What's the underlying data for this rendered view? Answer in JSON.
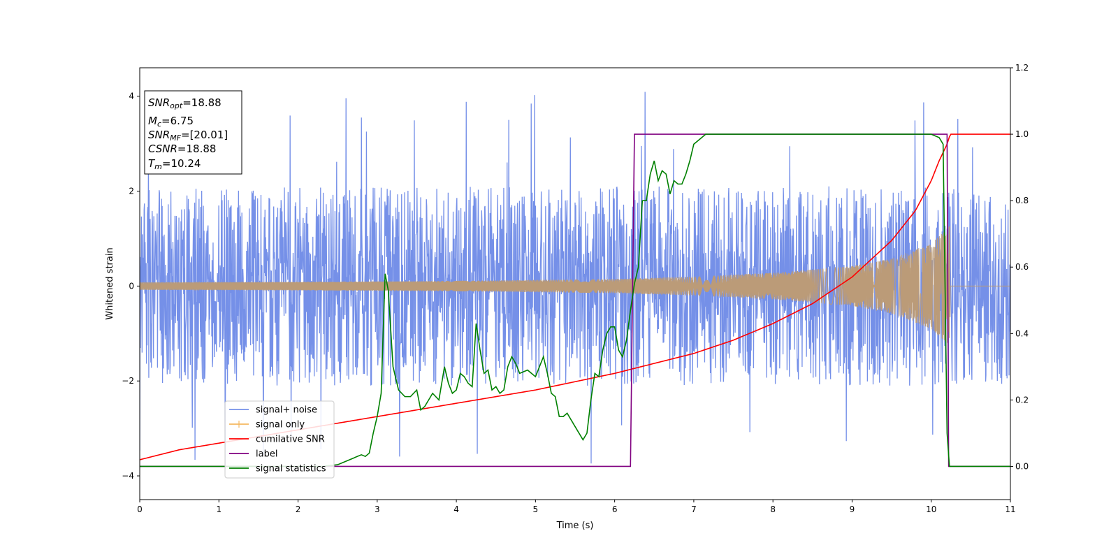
{
  "chart_data": {
    "type": "line",
    "title": "",
    "xlabel": "Time (s)",
    "ylabel": "Whitened strain",
    "xlim": [
      0,
      11
    ],
    "ylim": [
      -4.5,
      4.6
    ],
    "y2lim": [
      -0.1,
      1.2
    ],
    "x_ticks": [
      "0",
      "1",
      "2",
      "3",
      "4",
      "5",
      "6",
      "7",
      "8",
      "9",
      "10",
      "11"
    ],
    "y_ticks": [
      "4",
      "2",
      "0",
      "−2",
      "−4"
    ],
    "y_tick_values": [
      4,
      2,
      0,
      -2,
      -4
    ],
    "y2_ticks": [
      "1.2",
      "1.0",
      "0.8",
      "0.6",
      "0.4",
      "0.2",
      "0.0"
    ],
    "y2_tick_values": [
      1.2,
      1.0,
      0.8,
      0.6,
      0.4,
      0.2,
      0.0
    ],
    "grid": false,
    "legend_position": "lower-left",
    "colors": {
      "signal_noise": "#7590e8",
      "signal_only": "#f5b860",
      "signal_overlap": "#bb9b78",
      "cumulative_snr": "#ff0000",
      "label": "#800080",
      "signal_statistics": "#008000"
    },
    "series": [
      {
        "name": "signal+ noise",
        "axis": "left",
        "description_type": "noise",
        "envelope_y": [
          -2.0,
          2.3
        ],
        "max_spike": 4.15,
        "min_spike": -4.1
      },
      {
        "name": "signal only",
        "axis": "left",
        "description_type": "chirp",
        "amplitude_x": [
          0,
          2,
          4,
          6,
          7,
          8,
          9,
          9.5,
          10,
          10.2,
          10.24
        ],
        "amplitude_y": [
          0.08,
          0.09,
          0.11,
          0.15,
          0.2,
          0.28,
          0.42,
          0.58,
          0.9,
          1.2,
          1.3
        ],
        "end_x": 10.24
      },
      {
        "name": "cumilative SNR",
        "axis": "right",
        "x": [
          0,
          0.5,
          1,
          2,
          3,
          4,
          5,
          6,
          6.5,
          7,
          7.5,
          8,
          8.5,
          9,
          9.5,
          9.8,
          10,
          10.1,
          10.2,
          10.24,
          10.3,
          11
        ],
        "y": [
          0.02,
          0.05,
          0.07,
          0.11,
          0.15,
          0.19,
          0.23,
          0.28,
          0.31,
          0.34,
          0.38,
          0.43,
          0.49,
          0.57,
          0.68,
          0.77,
          0.86,
          0.92,
          0.97,
          1.0,
          1.0,
          1.0
        ]
      },
      {
        "name": "label",
        "axis": "right",
        "x": [
          0,
          6.2,
          6.25,
          10.2,
          10.22,
          11
        ],
        "y": [
          0.0,
          0.0,
          1.0,
          1.0,
          0.0,
          0.0
        ]
      },
      {
        "name": "signal statistics",
        "axis": "right",
        "x": [
          0,
          2.3,
          2.5,
          2.6,
          2.7,
          2.8,
          2.85,
          2.9,
          2.95,
          3.0,
          3.05,
          3.1,
          3.14,
          3.2,
          3.27,
          3.35,
          3.42,
          3.5,
          3.55,
          3.6,
          3.7,
          3.78,
          3.85,
          3.9,
          3.95,
          4.0,
          4.05,
          4.1,
          4.15,
          4.2,
          4.25,
          4.3,
          4.35,
          4.4,
          4.45,
          4.5,
          4.55,
          4.6,
          4.65,
          4.7,
          4.75,
          4.8,
          4.9,
          5.0,
          5.1,
          5.15,
          5.2,
          5.25,
          5.3,
          5.35,
          5.4,
          5.5,
          5.6,
          5.65,
          5.7,
          5.75,
          5.8,
          5.85,
          5.9,
          5.95,
          6.0,
          6.05,
          6.1,
          6.15,
          6.2,
          6.25,
          6.3,
          6.35,
          6.4,
          6.45,
          6.5,
          6.55,
          6.6,
          6.65,
          6.7,
          6.75,
          6.8,
          6.85,
          6.9,
          6.95,
          7.0,
          7.05,
          7.1,
          7.15,
          7.2,
          7.25,
          7.3,
          7.35,
          7.4,
          7.5,
          7.6,
          7.8,
          8.0,
          8.5,
          9.0,
          9.5,
          10.0,
          10.1,
          10.15,
          10.2,
          10.23,
          10.26,
          10.3,
          11
        ],
        "y": [
          0.0,
          0.0,
          0.005,
          0.015,
          0.025,
          0.035,
          0.03,
          0.04,
          0.1,
          0.15,
          0.22,
          0.58,
          0.53,
          0.3,
          0.23,
          0.21,
          0.21,
          0.23,
          0.17,
          0.18,
          0.22,
          0.2,
          0.3,
          0.25,
          0.22,
          0.23,
          0.28,
          0.27,
          0.25,
          0.24,
          0.43,
          0.35,
          0.28,
          0.29,
          0.23,
          0.24,
          0.22,
          0.23,
          0.3,
          0.33,
          0.31,
          0.28,
          0.29,
          0.27,
          0.33,
          0.28,
          0.22,
          0.21,
          0.15,
          0.15,
          0.16,
          0.12,
          0.08,
          0.1,
          0.2,
          0.28,
          0.27,
          0.35,
          0.4,
          0.42,
          0.42,
          0.35,
          0.33,
          0.38,
          0.47,
          0.55,
          0.6,
          0.8,
          0.8,
          0.88,
          0.92,
          0.86,
          0.89,
          0.88,
          0.82,
          0.86,
          0.85,
          0.85,
          0.88,
          0.92,
          0.97,
          0.98,
          0.99,
          1.0,
          1.0,
          1.0,
          1.0,
          1.0,
          1.0,
          1.0,
          1.0,
          1.0,
          1.0,
          1.0,
          1.0,
          1.0,
          1.0,
          0.99,
          0.97,
          0.1,
          0.0,
          0.0,
          0.0,
          0.0
        ]
      }
    ],
    "info_box": [
      {
        "main": "SNR",
        "sub": "opt",
        "value": "=18.88"
      },
      {
        "main": "M",
        "sub": "c",
        "value": "=6.75"
      },
      {
        "main": "SNR",
        "sub": "MF",
        "value": "=[20.01]"
      },
      {
        "main": "CSNR",
        "sub": "",
        "value": "=18.88"
      },
      {
        "main": "T",
        "sub": "m",
        "value": "=10.24"
      }
    ],
    "legend": [
      {
        "label": "signal+ noise",
        "color": "#7590e8",
        "style": "line"
      },
      {
        "label": "signal only",
        "color": "#f5b860",
        "style": "plus-line"
      },
      {
        "label": "cumilative SNR",
        "color": "#ff0000",
        "style": "line"
      },
      {
        "label": "label",
        "color": "#800080",
        "style": "line"
      },
      {
        "label": "signal statistics",
        "color": "#008000",
        "style": "line"
      }
    ]
  }
}
